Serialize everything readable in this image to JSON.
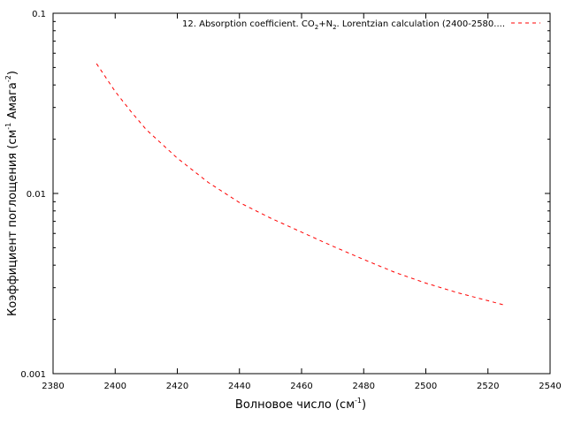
{
  "chart_data": {
    "type": "line",
    "title": "",
    "xlabel": "Волновое число (см-1)",
    "ylabel": "Коэффициент поглощения (см-1 Амага-2)",
    "xlabel_parts": {
      "main": "Волновое число (см",
      "sup": "-1",
      "tail": ")"
    },
    "ylabel_parts": {
      "main": "Коэффициент поглощения (см",
      "sup1": "-1",
      "mid": " Амага",
      "sup2": "-2",
      "tail": ")"
    },
    "xlim": [
      2380,
      2540
    ],
    "ylim": [
      0.001,
      0.1
    ],
    "yscale": "log",
    "grid": false,
    "legend_position": "top-right",
    "xticks": [
      2380,
      2400,
      2420,
      2440,
      2460,
      2480,
      2500,
      2520,
      2540
    ],
    "xtick_labels": [
      "2380",
      "2400",
      "2420",
      "2440",
      "2460",
      "2480",
      "2500",
      "2520",
      "2540"
    ],
    "yticks": [
      0.001,
      0.01,
      0.1
    ],
    "ytick_labels": [
      "0.001",
      "0.01",
      "0.1"
    ],
    "series": [
      {
        "name": "12. Absorption coefficient. CO2+N2. Lorentzian calculation (2400-2580....",
        "legend_parts": {
          "a": "12. Absorption coefficient. CO",
          "s1": "2",
          "b": "+N",
          "s2": "2",
          "c": ". Lorentzian calculation (2400-2580...."
        },
        "color": "#ff0000",
        "style": "dashed",
        "x": [
          2394,
          2400,
          2405,
          2410,
          2420,
          2430,
          2440,
          2450,
          2460,
          2470,
          2480,
          2490,
          2500,
          2510,
          2520,
          2525
        ],
        "y": [
          0.0525,
          0.0368,
          0.0286,
          0.0226,
          0.0157,
          0.0115,
          0.0089,
          0.0073,
          0.0061,
          0.0051,
          0.0043,
          0.00365,
          0.00318,
          0.00282,
          0.00254,
          0.00241
        ]
      }
    ]
  }
}
